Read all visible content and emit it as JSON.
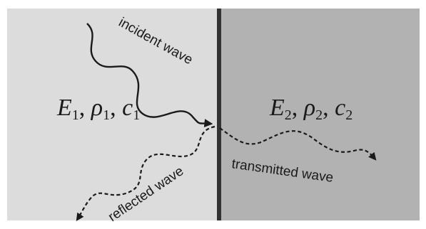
{
  "labels": {
    "incident": "incident wave",
    "reflected": "reflected wave",
    "transmitted": "transmitted wave"
  },
  "media": {
    "left": {
      "E": "E",
      "E_sub": "1",
      "rho": "ρ",
      "rho_sub": "1",
      "c": "c",
      "c_sub": "1"
    },
    "right": {
      "E": "E",
      "E_sub": "2",
      "rho": "ρ",
      "rho_sub": "2",
      "c": "c",
      "c_sub": "2"
    }
  },
  "colors": {
    "medium_left": "#dcdcdc",
    "medium_right": "#b2b2b2",
    "interface": "#333333",
    "wave": "#1a1a1a"
  }
}
